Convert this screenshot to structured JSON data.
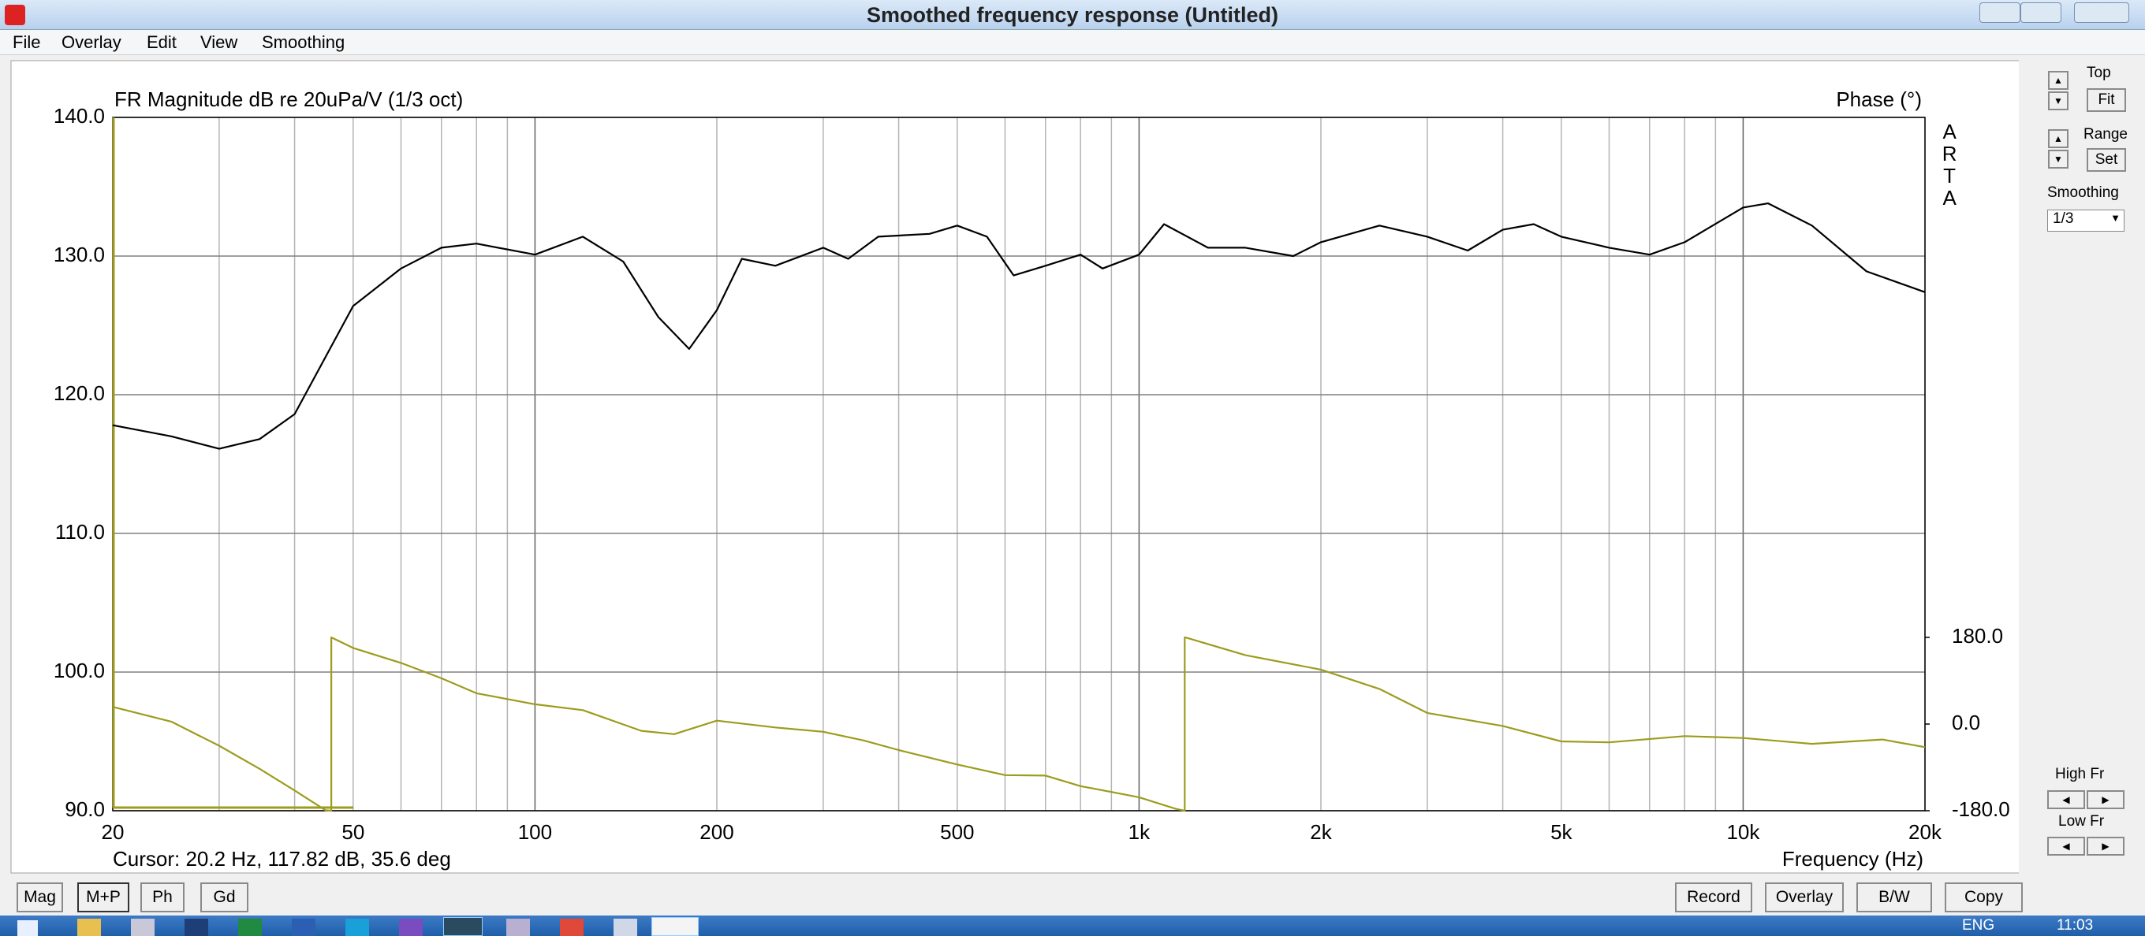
{
  "window": {
    "title": "Smoothed frequency response (Untitled)",
    "menu": [
      "File",
      "Overlay",
      "Edit",
      "View",
      "Smoothing"
    ],
    "side_panel": {
      "top": "Top",
      "fit": "Fit",
      "range": "Range",
      "set": "Set",
      "smoothing": "Smoothing",
      "smoothing_value": "1/3",
      "high_fr": "High Fr",
      "low_fr": "Low Fr"
    },
    "left_buttons": [
      "Mag",
      "M+P",
      "Ph",
      "Gd"
    ],
    "right_buttons": [
      "Record",
      "Overlay",
      "B/W",
      "Copy"
    ],
    "taskbar": {
      "language": "ENG",
      "time": "11:03"
    }
  },
  "chart_data": {
    "type": "line",
    "title": "FR Magnitude dB re 20uPa/V (1/3 oct)",
    "y2_label": "Phase (°)",
    "x_label": "Frequency (Hz)",
    "cursor": "Cursor: 20.2 Hz, 117.82 dB, 35.6 deg",
    "watermark": "ARTA",
    "xscale": "log",
    "grid": true,
    "xlim": [
      20,
      20000
    ],
    "xticks": [
      20,
      50,
      100,
      200,
      500,
      {
        "value": 1000,
        "label": "1k"
      },
      {
        "value": 2000,
        "label": "2k"
      },
      {
        "value": 5000,
        "label": "5k"
      },
      {
        "value": 10000,
        "label": "10k"
      },
      {
        "value": 20000,
        "label": "20k"
      }
    ],
    "xgrid_minor": [
      30,
      40,
      60,
      70,
      80,
      90,
      300,
      400,
      600,
      700,
      800,
      900,
      3000,
      4000,
      6000,
      7000,
      8000,
      9000
    ],
    "ylim": [
      90,
      140
    ],
    "yticks": [
      {
        "value": 90,
        "label": "90.0"
      },
      {
        "value": 100,
        "label": "100.0"
      },
      {
        "value": 110,
        "label": "110.0"
      },
      {
        "value": 120,
        "label": "120.0"
      },
      {
        "value": 130,
        "label": "130.0"
      },
      {
        "value": 140,
        "label": "140.0"
      }
    ],
    "y2lim": [
      -180,
      1260
    ],
    "y2ticks": [
      {
        "value": -180,
        "label": "-180.0"
      },
      {
        "value": 0,
        "label": "0.0"
      },
      {
        "value": 180,
        "label": "180.0"
      }
    ],
    "series": [
      {
        "name": "Magnitude",
        "color": "#000000",
        "x": [
          20,
          25,
          30,
          35,
          40,
          50,
          60,
          70,
          80,
          100,
          120,
          140,
          160,
          180,
          200,
          220,
          250,
          300,
          330,
          370,
          450,
          500,
          560,
          620,
          700,
          800,
          870,
          1000,
          1100,
          1300,
          1500,
          1800,
          2000,
          2500,
          3000,
          3500,
          4000,
          4500,
          5000,
          6000,
          7000,
          8000,
          10000,
          11000,
          13000,
          16000,
          20000
        ],
        "values": [
          117.8,
          117.0,
          116.1,
          116.8,
          118.6,
          126.4,
          129.1,
          130.6,
          130.9,
          130.1,
          131.4,
          129.6,
          125.6,
          123.3,
          126.1,
          129.8,
          129.3,
          130.6,
          129.8,
          131.4,
          131.6,
          132.2,
          131.4,
          128.6,
          129.3,
          130.1,
          129.1,
          130.1,
          132.3,
          130.6,
          130.6,
          130.0,
          131.0,
          132.2,
          131.4,
          130.4,
          131.9,
          132.3,
          131.4,
          130.6,
          130.1,
          131.0,
          133.5,
          133.8,
          132.2,
          128.9,
          127.4
        ]
      },
      {
        "name": "Phase",
        "color": "#9c9c1e",
        "axis": "y2",
        "x": [
          20,
          25,
          30,
          35,
          40,
          45,
          46,
          46,
          50,
          60,
          70,
          80,
          100,
          120,
          150,
          170,
          200,
          250,
          300,
          350,
          400,
          500,
          600,
          700,
          800,
          900,
          1000,
          1150,
          1190,
          1190,
          1200,
          1500,
          2000,
          2500,
          3000,
          4000,
          5000,
          6000,
          8000,
          10000,
          13000,
          17000,
          20000
        ],
        "values": [
          35.6,
          5,
          -45,
          -93,
          -138,
          -179,
          -180,
          180,
          158,
          127,
          95,
          64,
          41,
          29,
          -14,
          -21,
          7,
          -7,
          -16,
          -34,
          -54,
          -84,
          -106,
          -107,
          -129,
          -141,
          -152,
          -176,
          -180,
          180,
          179,
          143,
          113,
          73,
          23,
          -4,
          -36,
          -38,
          -25,
          -29,
          -41,
          -32,
          -48
        ]
      }
    ]
  }
}
